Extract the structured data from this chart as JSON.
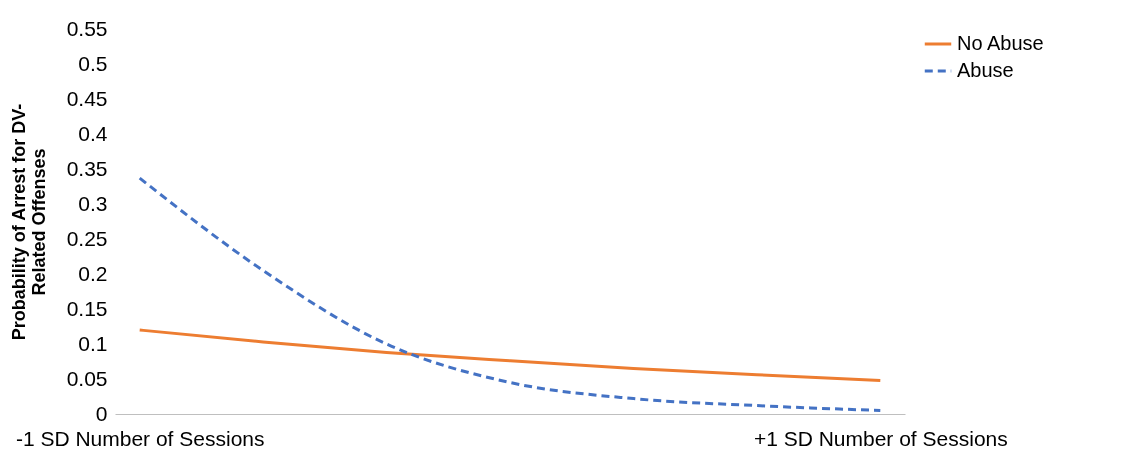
{
  "chart_data": {
    "type": "line",
    "ylabel": "Probability of Arrest for DV-Related Offenses",
    "categories": [
      "-1 SD Number of Sessions",
      null,
      null,
      null,
      null,
      null,
      "+1 SD Number of Sessions"
    ],
    "series": [
      {
        "name": "No Abuse",
        "color": "#ed7d31",
        "line_style": "solid",
        "values": [
          0.12,
          0.103,
          0.088,
          0.076,
          0.065,
          0.056,
          0.048
        ]
      },
      {
        "name": "Abuse",
        "color": "#4472c4",
        "line_style": "dashed",
        "values": [
          0.337,
          0.205,
          0.1,
          0.045,
          0.022,
          0.012,
          0.005
        ]
      }
    ],
    "ylim": [
      0,
      0.55
    ],
    "yticks": [
      0,
      0.05,
      0.1,
      0.15,
      0.2,
      0.25,
      0.3,
      0.35,
      0.4,
      0.45,
      0.5,
      0.55
    ],
    "grid": false,
    "legend": "right",
    "marker": "none"
  }
}
